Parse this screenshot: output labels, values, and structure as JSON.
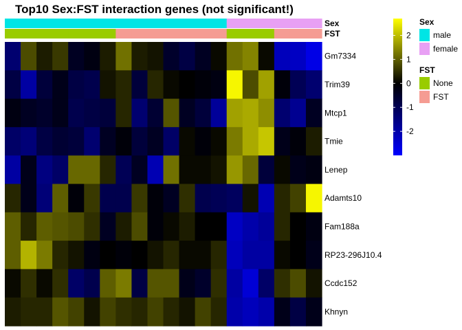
{
  "chart_data": {
    "type": "heatmap",
    "title": "Top10 Sex:FST interaction genes (not significant!)",
    "rows": [
      "Gm7334",
      "Trim39",
      "Mtcp1",
      "Tmie",
      "Lenep",
      "Adamts10",
      "Fam188a",
      "RP23-296J10.4",
      "Ccdc152",
      "Khnyn"
    ],
    "annotations": [
      {
        "name": "Sex",
        "values": [
          "male",
          "male",
          "male",
          "male",
          "male",
          "male",
          "male",
          "male",
          "male",
          "male",
          "male",
          "male",
          "male",
          "male",
          "female",
          "female",
          "female",
          "female",
          "female",
          "female"
        ],
        "legend": [
          {
            "label": "male",
            "color": "#00E5E5"
          },
          {
            "label": "female",
            "color": "#E8A0F4"
          }
        ]
      },
      {
        "name": "FST",
        "values": [
          "None",
          "None",
          "None",
          "None",
          "None",
          "None",
          "None",
          "FST",
          "FST",
          "FST",
          "FST",
          "FST",
          "FST",
          "FST",
          "None",
          "None",
          "None",
          "FST",
          "FST",
          "FST"
        ],
        "legend": [
          {
            "label": "None",
            "color": "#99CC00"
          },
          {
            "label": "FST",
            "color": "#F59C93"
          }
        ]
      }
    ],
    "values": [
      [
        -1.3,
        0.8,
        0.3,
        0.6,
        -0.4,
        -0.2,
        0.3,
        1.2,
        0.3,
        0.2,
        -0.5,
        -0.8,
        -0.4,
        0.1,
        1.2,
        1.4,
        0.1,
        -2.2,
        -2.3,
        -2.7
      ],
      [
        -0.8,
        -1.9,
        -0.7,
        -0.3,
        -0.8,
        -0.9,
        0.2,
        0.4,
        -0.7,
        0.4,
        0.1,
        0.0,
        -0.1,
        -0.2,
        2.6,
        0.8,
        1.7,
        -0.1,
        -1.0,
        -1.3
      ],
      [
        -0.2,
        -0.4,
        -0.5,
        -0.3,
        -0.9,
        -0.8,
        -0.7,
        0.4,
        -1.3,
        -0.6,
        0.9,
        -0.4,
        -0.7,
        -1.8,
        1.7,
        1.8,
        1.5,
        -1.3,
        -1.7,
        -0.4
      ],
      [
        -1.2,
        -1.4,
        -0.8,
        -0.6,
        -0.7,
        -1.3,
        -0.4,
        -0.1,
        -0.7,
        -0.4,
        -1.2,
        0.1,
        -0.1,
        0.1,
        1.3,
        1.8,
        2.1,
        -0.3,
        -0.1,
        0.3
      ],
      [
        -1.9,
        -0.3,
        -1.5,
        -1.2,
        1.1,
        1.1,
        0.4,
        -1.0,
        -0.4,
        -2.1,
        1.2,
        0.1,
        0.1,
        0.2,
        1.6,
        1.1,
        -0.7,
        0.1,
        -0.3,
        -0.2
      ],
      [
        0.4,
        -0.3,
        -1.4,
        1.0,
        -0.1,
        0.6,
        -0.9,
        -0.9,
        0.6,
        -0.1,
        -0.4,
        0.5,
        -0.9,
        -1.0,
        -1.1,
        0.2,
        -2.1,
        0.4,
        0.7,
        2.6
      ],
      [
        1.0,
        0.4,
        1.0,
        0.9,
        0.8,
        0.5,
        -0.4,
        0.3,
        0.8,
        -0.1,
        0.1,
        0.3,
        0.0,
        0.0,
        -2.3,
        -2.0,
        -1.8,
        0.4,
        0.0,
        -0.2
      ],
      [
        1.0,
        1.9,
        1.3,
        0.4,
        0.2,
        -0.2,
        0.0,
        -0.1,
        0.0,
        0.2,
        0.4,
        0.1,
        0.1,
        0.4,
        -2.2,
        -1.9,
        -1.9,
        0.1,
        0.0,
        -0.3
      ],
      [
        0.1,
        0.5,
        0.1,
        0.5,
        -1.2,
        -0.9,
        1.0,
        1.3,
        -0.8,
        0.9,
        0.9,
        -0.3,
        -0.5,
        0.5,
        -1.9,
        -2.5,
        -1.2,
        0.5,
        0.8,
        0.2
      ],
      [
        0.3,
        0.4,
        0.4,
        0.9,
        0.7,
        0.2,
        0.7,
        0.5,
        0.4,
        0.7,
        0.4,
        0.2,
        0.7,
        0.4,
        -2.0,
        -2.2,
        -2.0,
        -0.3,
        -0.8,
        -0.3
      ]
    ],
    "color_scale": {
      "min": -3.0,
      "mid": 0,
      "max": 2.7,
      "low_color": "#0000FF",
      "mid_color": "#000000",
      "high_color": "#FFFF00",
      "ticks": [
        2,
        1,
        0,
        -1,
        -2
      ],
      "tick_labels": [
        "2",
        "1",
        "0",
        "-1",
        "-2"
      ]
    }
  }
}
